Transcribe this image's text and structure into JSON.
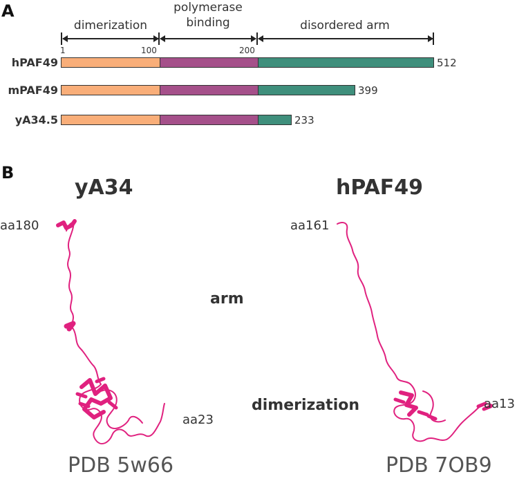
{
  "panels": {
    "a": "A",
    "b": "B"
  },
  "domains": {
    "dimerization": "dimerization",
    "polymerase_binding": "polymerase\nbinding",
    "disordered_arm": "disordered arm"
  },
  "ticks": {
    "t1": "1",
    "t100": "100",
    "t200": "200"
  },
  "colors": {
    "dimerization": "#F9AE79",
    "polymerase_binding": "#A5508A",
    "disordered_arm": "#3F8F7C",
    "ribbon": "#E0217F"
  },
  "proteins": [
    {
      "name": "hPAF49",
      "length": "512"
    },
    {
      "name": "mPAF49",
      "length": "399"
    },
    {
      "name": "yA34.5",
      "length": "233"
    }
  ],
  "structures": {
    "left": {
      "title": "yA34",
      "top_aa": "aa180",
      "bottom_aa": "aa23",
      "pdb": "PDB 5w66"
    },
    "right": {
      "title": "hPAF49",
      "top_aa": "aa161",
      "bottom_aa": "aa13",
      "pdb": "PDB 7OB9"
    }
  },
  "region_labels": {
    "arm": "arm",
    "dimerization": "dimerization"
  }
}
